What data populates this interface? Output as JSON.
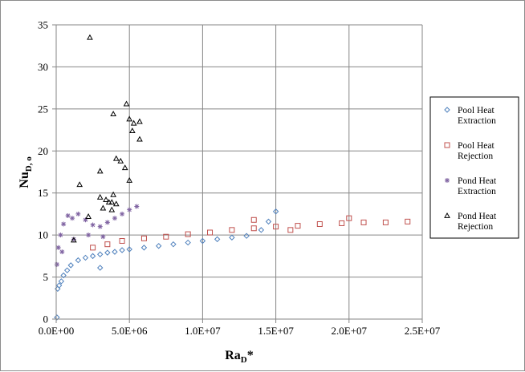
{
  "chart_data": {
    "type": "scatter",
    "title": "",
    "xlabel": {
      "main": "Ra",
      "sub": "D",
      "suffix": "*"
    },
    "ylabel": {
      "main": "Nu",
      "sub": "D, o"
    },
    "xlim": [
      0,
      25000000
    ],
    "ylim": [
      0,
      35
    ],
    "xticks": [
      0,
      5000000,
      10000000,
      15000000,
      20000000,
      25000000
    ],
    "xtick_labels": [
      "0.0E+00",
      "5.0E+06",
      "1.0E+07",
      "1.5E+07",
      "2.0E+07",
      "2.5E+07"
    ],
    "yticks": [
      0,
      5,
      10,
      15,
      20,
      25,
      30,
      35
    ],
    "ytick_labels": [
      "0",
      "5",
      "10",
      "15",
      "20",
      "25",
      "30",
      "35"
    ],
    "grid": true,
    "legend_position": "right",
    "series": [
      {
        "name": "Pool Heat Extraction",
        "marker": "diamond",
        "color": "#4f81bd",
        "points": [
          [
            50000,
            0.2
          ],
          [
            100000,
            3.6
          ],
          [
            200000,
            4.0
          ],
          [
            350000,
            4.5
          ],
          [
            500000,
            5.2
          ],
          [
            750000,
            5.8
          ],
          [
            1000000,
            6.4
          ],
          [
            1500000,
            7.0
          ],
          [
            2000000,
            7.3
          ],
          [
            2500000,
            7.5
          ],
          [
            3000000,
            7.7
          ],
          [
            3500000,
            7.9
          ],
          [
            4000000,
            8.0
          ],
          [
            4500000,
            8.2
          ],
          [
            5000000,
            8.3
          ],
          [
            6000000,
            8.5
          ],
          [
            7000000,
            8.7
          ],
          [
            8000000,
            8.9
          ],
          [
            9000000,
            9.1
          ],
          [
            10000000,
            9.3
          ],
          [
            11000000,
            9.5
          ],
          [
            12000000,
            9.7
          ],
          [
            13000000,
            9.9
          ],
          [
            14000000,
            10.6
          ],
          [
            14500000,
            11.6
          ],
          [
            15000000,
            12.8
          ],
          [
            3000000,
            6.1
          ]
        ]
      },
      {
        "name": "Pool Heat Rejection",
        "marker": "square",
        "color": "#c0504d",
        "points": [
          [
            2500000,
            8.5
          ],
          [
            3500000,
            8.9
          ],
          [
            4500000,
            9.3
          ],
          [
            6000000,
            9.6
          ],
          [
            7500000,
            9.8
          ],
          [
            9000000,
            10.1
          ],
          [
            10500000,
            10.3
          ],
          [
            12000000,
            10.6
          ],
          [
            13500000,
            10.8
          ],
          [
            15000000,
            11.0
          ],
          [
            16500000,
            11.1
          ],
          [
            18000000,
            11.3
          ],
          [
            19500000,
            11.4
          ],
          [
            21000000,
            11.5
          ],
          [
            22500000,
            11.5
          ],
          [
            24000000,
            11.6
          ],
          [
            13500000,
            11.8
          ],
          [
            20000000,
            12.0
          ],
          [
            16000000,
            10.6
          ]
        ]
      },
      {
        "name": "Pond Heat Extraction",
        "marker": "star",
        "color": "#8064a2",
        "points": [
          [
            50000,
            6.5
          ],
          [
            150000,
            8.5
          ],
          [
            300000,
            10.0
          ],
          [
            500000,
            11.3
          ],
          [
            800000,
            12.3
          ],
          [
            1100000,
            12.0
          ],
          [
            1500000,
            12.5
          ],
          [
            2000000,
            11.8
          ],
          [
            2500000,
            11.2
          ],
          [
            3000000,
            11.0
          ],
          [
            3500000,
            11.5
          ],
          [
            4000000,
            12.0
          ],
          [
            4500000,
            12.5
          ],
          [
            5000000,
            13.0
          ],
          [
            5500000,
            13.4
          ],
          [
            400000,
            8.0
          ],
          [
            1200000,
            9.5
          ],
          [
            2200000,
            10.0
          ],
          [
            3200000,
            9.8
          ]
        ]
      },
      {
        "name": "Pond Heat Rejection",
        "marker": "triangle",
        "color": "#000000",
        "points": [
          [
            2300000,
            33.5
          ],
          [
            4800000,
            25.6
          ],
          [
            3900000,
            24.4
          ],
          [
            5000000,
            23.8
          ],
          [
            5300000,
            23.3
          ],
          [
            5700000,
            23.5
          ],
          [
            5200000,
            22.4
          ],
          [
            5700000,
            21.4
          ],
          [
            4100000,
            19.1
          ],
          [
            4400000,
            18.8
          ],
          [
            4700000,
            18.0
          ],
          [
            3000000,
            17.6
          ],
          [
            5000000,
            16.5
          ],
          [
            1600000,
            16.0
          ],
          [
            3900000,
            14.8
          ],
          [
            3000000,
            14.5
          ],
          [
            3400000,
            14.2
          ],
          [
            3600000,
            13.9
          ],
          [
            3800000,
            13.9
          ],
          [
            4100000,
            13.7
          ],
          [
            3200000,
            13.2
          ],
          [
            3800000,
            13.0
          ],
          [
            2200000,
            12.2
          ],
          [
            1200000,
            9.4
          ]
        ]
      }
    ]
  }
}
